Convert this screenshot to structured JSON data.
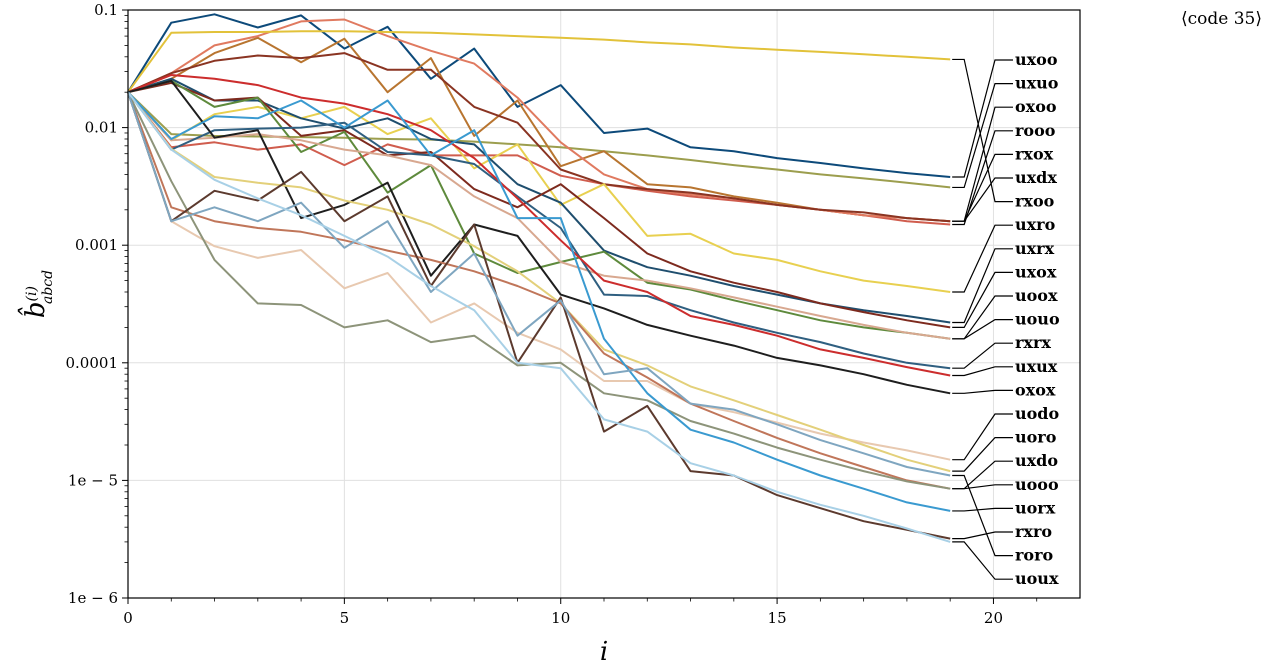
{
  "annotation": "⟨code 35⟩",
  "chart_data": {
    "type": "line",
    "xlabel": "i",
    "ylabel": "b̂(i)abcd",
    "ylabel_parts": {
      "base": "b̂",
      "sup": "(i)",
      "sub": "abcd"
    },
    "xlim": [
      0,
      22
    ],
    "ylim": [
      1e-06,
      0.1
    ],
    "yscale": "log",
    "grid": true,
    "legend": "right, labels with leader lines",
    "xticks": [
      0,
      5,
      10,
      15,
      20
    ],
    "xtick_labels": [
      "0",
      "5",
      "10",
      "15",
      "20"
    ],
    "yticks": [
      1e-06,
      1e-05,
      0.0001,
      0.001,
      0.01,
      0.1
    ],
    "ytick_labels": [
      "1e − 6",
      "1e − 5",
      "0.0001",
      "0.001",
      "0.01",
      "0.1"
    ],
    "x": [
      0,
      1,
      2,
      3,
      4,
      5,
      6,
      7,
      8,
      9,
      10,
      11,
      12,
      13,
      14,
      15,
      16,
      17,
      18,
      19
    ],
    "series": [
      {
        "name": "uxoo",
        "color": "#0d4a7a",
        "values": [
          0.02,
          0.078,
          0.092,
          0.071,
          0.09,
          0.047,
          0.072,
          0.026,
          0.047,
          0.015,
          0.023,
          0.009,
          0.0098,
          0.0068,
          0.0063,
          0.0055,
          0.005,
          0.0045,
          0.0041,
          0.0038
        ]
      },
      {
        "name": "uxuo",
        "color": "#9c9e4e",
        "values": [
          0.02,
          0.0088,
          0.0085,
          0.0084,
          0.0083,
          0.0082,
          0.008,
          0.0079,
          0.0076,
          0.0072,
          0.0068,
          0.0063,
          0.0058,
          0.0053,
          0.0048,
          0.0044,
          0.004,
          0.0037,
          0.0034,
          0.0031
        ]
      },
      {
        "name": "oxoo",
        "color": "#b87530",
        "values": [
          0.02,
          0.026,
          0.043,
          0.058,
          0.036,
          0.057,
          0.02,
          0.039,
          0.0085,
          0.017,
          0.0047,
          0.0063,
          0.0033,
          0.0031,
          0.0026,
          0.0023,
          0.002,
          0.0018,
          0.0017,
          0.0016
        ]
      },
      {
        "name": "rooo",
        "color": "#d05d4e",
        "values": [
          0.02,
          0.0068,
          0.0075,
          0.0065,
          0.0072,
          0.0048,
          0.0072,
          0.0058,
          0.0058,
          0.0058,
          0.0039,
          0.0033,
          0.0029,
          0.0026,
          0.0024,
          0.0022,
          0.002,
          0.0018,
          0.0016,
          0.0015
        ]
      },
      {
        "name": "rxox",
        "color": "#e07a60",
        "values": [
          0.02,
          0.029,
          0.05,
          0.06,
          0.08,
          0.083,
          0.06,
          0.045,
          0.035,
          0.018,
          0.0075,
          0.004,
          0.003,
          0.0027,
          0.0025,
          0.0022,
          0.002,
          0.0018,
          0.0017,
          0.0016
        ]
      },
      {
        "name": "uxdx",
        "color": "#8a3422",
        "values": [
          0.02,
          0.029,
          0.037,
          0.041,
          0.039,
          0.043,
          0.031,
          0.031,
          0.015,
          0.011,
          0.0044,
          0.0033,
          0.003,
          0.0028,
          0.0025,
          0.0022,
          0.002,
          0.0019,
          0.0017,
          0.0016
        ]
      },
      {
        "name": "rxoo",
        "color": "#e2c23a",
        "values": [
          0.02,
          0.064,
          0.065,
          0.065,
          0.066,
          0.066,
          0.065,
          0.064,
          0.062,
          0.06,
          0.058,
          0.056,
          0.053,
          0.051,
          0.048,
          0.046,
          0.044,
          0.042,
          0.04,
          0.038
        ]
      },
      {
        "name": "uxro",
        "color": "#e8d050",
        "values": [
          0.02,
          0.0078,
          0.013,
          0.015,
          0.012,
          0.015,
          0.0088,
          0.012,
          0.0045,
          0.0072,
          0.0022,
          0.0033,
          0.0012,
          0.00125,
          0.00085,
          0.00075,
          0.0006,
          0.0005,
          0.00045,
          0.0004
        ]
      },
      {
        "name": "uxrx",
        "color": "#1f4e6e",
        "values": [
          0.02,
          0.026,
          0.017,
          0.017,
          0.012,
          0.0098,
          0.012,
          0.008,
          0.0072,
          0.0033,
          0.0023,
          0.0009,
          0.00065,
          0.00055,
          0.00045,
          0.00038,
          0.00032,
          0.00028,
          0.00025,
          0.00022
        ]
      },
      {
        "name": "uxox",
        "color": "#7d2a1e",
        "values": [
          0.02,
          0.024,
          0.017,
          0.018,
          0.0085,
          0.0095,
          0.0058,
          0.0062,
          0.003,
          0.0021,
          0.0033,
          0.0017,
          0.00085,
          0.0006,
          0.00048,
          0.0004,
          0.00032,
          0.00027,
          0.00023,
          0.0002
        ]
      },
      {
        "name": "uoox",
        "color": "#5e8a3c",
        "values": [
          0.02,
          0.025,
          0.015,
          0.018,
          0.0062,
          0.0092,
          0.0028,
          0.0048,
          0.00085,
          0.00058,
          0.00072,
          0.00088,
          0.00048,
          0.00042,
          0.00034,
          0.00028,
          0.00023,
          0.0002,
          0.00018,
          0.00016
        ]
      },
      {
        "name": "uouo",
        "color": "#d8a890",
        "values": [
          0.02,
          0.0078,
          0.0082,
          0.0088,
          0.0078,
          0.0065,
          0.0058,
          0.0048,
          0.0026,
          0.0017,
          0.00072,
          0.00055,
          0.0005,
          0.00043,
          0.00036,
          0.0003,
          0.00025,
          0.00021,
          0.00018,
          0.00016
        ]
      },
      {
        "name": "rxrx",
        "color": "#2f5f80",
        "values": [
          0.02,
          0.0065,
          0.0095,
          0.0098,
          0.01,
          0.011,
          0.0062,
          0.0058,
          0.0049,
          0.0026,
          0.0014,
          0.00038,
          0.00037,
          0.00028,
          0.00022,
          0.00018,
          0.00015,
          0.00012,
          0.0001,
          9e-05
        ]
      },
      {
        "name": "uxux",
        "color": "#cc2d2d",
        "values": [
          0.02,
          0.028,
          0.026,
          0.023,
          0.018,
          0.016,
          0.013,
          0.0095,
          0.0055,
          0.0025,
          0.0011,
          0.0005,
          0.0004,
          0.00025,
          0.00021,
          0.00017,
          0.00013,
          0.00011,
          9.2e-05,
          7.8e-05
        ]
      },
      {
        "name": "oxox",
        "color": "#1e1e1e",
        "values": [
          0.02,
          0.025,
          0.0082,
          0.0095,
          0.0017,
          0.0022,
          0.0034,
          0.00055,
          0.0015,
          0.0012,
          0.00038,
          0.00029,
          0.00021,
          0.00017,
          0.00014,
          0.00011,
          9.5e-05,
          8e-05,
          6.5e-05,
          5.5e-05
        ]
      },
      {
        "name": "uodo",
        "color": "#e8c9b0",
        "values": [
          0.02,
          0.0016,
          0.00098,
          0.00078,
          0.00091,
          0.00043,
          0.00058,
          0.00022,
          0.00032,
          0.00018,
          0.00013,
          7e-05,
          7e-05,
          4.5e-05,
          3.8e-05,
          3.1e-05,
          2.5e-05,
          2.1e-05,
          1.8e-05,
          1.5e-05
        ]
      },
      {
        "name": "uoro",
        "color": "#e3d07a",
        "values": [
          0.02,
          0.0066,
          0.0038,
          0.0034,
          0.0031,
          0.0024,
          0.002,
          0.0015,
          0.00098,
          0.0006,
          0.00032,
          0.00013,
          9.5e-05,
          6.3e-05,
          4.8e-05,
          3.6e-05,
          2.7e-05,
          2e-05,
          1.5e-05,
          1.2e-05
        ]
      },
      {
        "name": "uxdo",
        "color": "#c0765a",
        "values": [
          0.02,
          0.0021,
          0.0016,
          0.0014,
          0.0013,
          0.0011,
          0.0009,
          0.00075,
          0.0006,
          0.00045,
          0.00032,
          0.00012,
          7.5e-05,
          4.5e-05,
          3.2e-05,
          2.3e-05,
          1.7e-05,
          1.3e-05,
          1e-05,
          8.5e-06
        ]
      },
      {
        "name": "uooo",
        "color": "#8d947a",
        "values": [
          0.02,
          0.0035,
          0.00075,
          0.00032,
          0.00031,
          0.0002,
          0.00023,
          0.00015,
          0.00017,
          9.5e-05,
          0.0001,
          5.5e-05,
          4.8e-05,
          3.2e-05,
          2.5e-05,
          1.9e-05,
          1.5e-05,
          1.2e-05,
          9.8e-06,
          8.5e-06
        ]
      },
      {
        "name": "uorx",
        "color": "#3a9ad0",
        "values": [
          0.02,
          0.008,
          0.0125,
          0.012,
          0.017,
          0.01,
          0.017,
          0.0058,
          0.0095,
          0.0017,
          0.0017,
          0.00016,
          5.5e-05,
          2.7e-05,
          2.1e-05,
          1.5e-05,
          1.1e-05,
          8.5e-06,
          6.5e-06,
          5.5e-06
        ]
      },
      {
        "name": "rxro",
        "color": "#5c3a2e",
        "values": [
          0.02,
          0.0016,
          0.0029,
          0.0024,
          0.0042,
          0.0016,
          0.0026,
          0.00045,
          0.0015,
          0.0001,
          0.00036,
          2.6e-05,
          4.3e-05,
          1.2e-05,
          1.1e-05,
          7.5e-06,
          5.8e-06,
          4.5e-06,
          3.8e-06,
          3.2e-06
        ]
      },
      {
        "name": "roro",
        "color": "#7fa6c0",
        "values": [
          0.02,
          0.0016,
          0.0021,
          0.0016,
          0.0023,
          0.00095,
          0.0016,
          0.0004,
          0.00085,
          0.00017,
          0.00034,
          8e-05,
          9e-05,
          4.5e-05,
          4e-05,
          3e-05,
          2.2e-05,
          1.7e-05,
          1.3e-05,
          1.1e-05
        ]
      },
      {
        "name": "uoux",
        "color": "#a8d0e6",
        "values": [
          0.02,
          0.0065,
          0.0036,
          0.0025,
          0.0018,
          0.0012,
          0.0008,
          0.00045,
          0.00028,
          0.0001,
          9e-05,
          3.3e-05,
          2.6e-05,
          1.4e-05,
          1.1e-05,
          8e-06,
          6.2e-06,
          5e-06,
          3.9e-06,
          3e-06
        ]
      }
    ]
  }
}
